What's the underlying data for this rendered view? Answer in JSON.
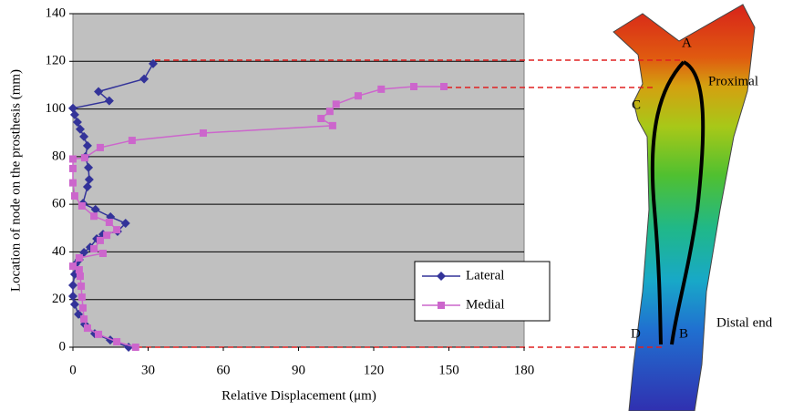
{
  "chart_data": {
    "type": "line",
    "x_label": "Relative Displacement (μm)",
    "y_label": "Location of node on the prosthesis (mm)",
    "xlim": [
      0,
      180
    ],
    "xticks": [
      0,
      30,
      60,
      90,
      120,
      150,
      180
    ],
    "ylim": [
      0,
      140
    ],
    "yticks": [
      0,
      20,
      40,
      60,
      80,
      100,
      120,
      140
    ],
    "grid": true,
    "series": [
      {
        "name": "Lateral",
        "color": "#333399",
        "marker": "diamond",
        "x": [
          22.2,
          14.9,
          8.7,
          4.7,
          2.2,
          0.7,
          0,
          0,
          0.7,
          1,
          2.5,
          4.4,
          6.9,
          9.5,
          12,
          17.8,
          21,
          15,
          9,
          4,
          5.8,
          6.5,
          6.2,
          5,
          5.8,
          4.4,
          2.9,
          1.8,
          0.7,
          0,
          14.5,
          10.2,
          28.4,
          32
        ],
        "y": [
          0,
          3,
          5.7,
          9.6,
          13.8,
          18,
          21.4,
          26,
          30.6,
          34.8,
          36.7,
          39.8,
          42,
          45.5,
          47.4,
          48.6,
          52,
          54.7,
          57.8,
          60.4,
          67.3,
          70.4,
          75.4,
          80,
          84.6,
          88.4,
          91.5,
          94.5,
          97.6,
          100.3,
          103.4,
          107.3,
          112.6,
          119
        ]
      },
      {
        "name": "Medial",
        "color": "#CC66CC",
        "marker": "square",
        "x": [
          25,
          17.5,
          10.2,
          5.8,
          4.4,
          4,
          3.6,
          3.3,
          2.9,
          2.5,
          0,
          2.5,
          12,
          8.4,
          10.9,
          13.5,
          17.5,
          14.5,
          8.4,
          3.6,
          0.7,
          0,
          0,
          0,
          4.7,
          10.9,
          23.6,
          52,
          103.6,
          99,
          102.5,
          105,
          113.8,
          123,
          136,
          148
        ],
        "y": [
          0,
          2.3,
          5.4,
          8,
          11.8,
          16.5,
          21,
          25.6,
          29.8,
          32.5,
          34,
          37.5,
          39.4,
          41.3,
          44.8,
          47,
          49.3,
          52.4,
          55,
          59.3,
          63.5,
          69,
          75,
          79,
          79.5,
          83.8,
          86.8,
          89.9,
          93,
          96,
          99,
          102,
          105.5,
          108.3,
          109.4,
          109.4
        ]
      }
    ],
    "annotations": [
      "A",
      "Proximal",
      "C",
      "D",
      "B",
      "Distal end"
    ]
  }
}
